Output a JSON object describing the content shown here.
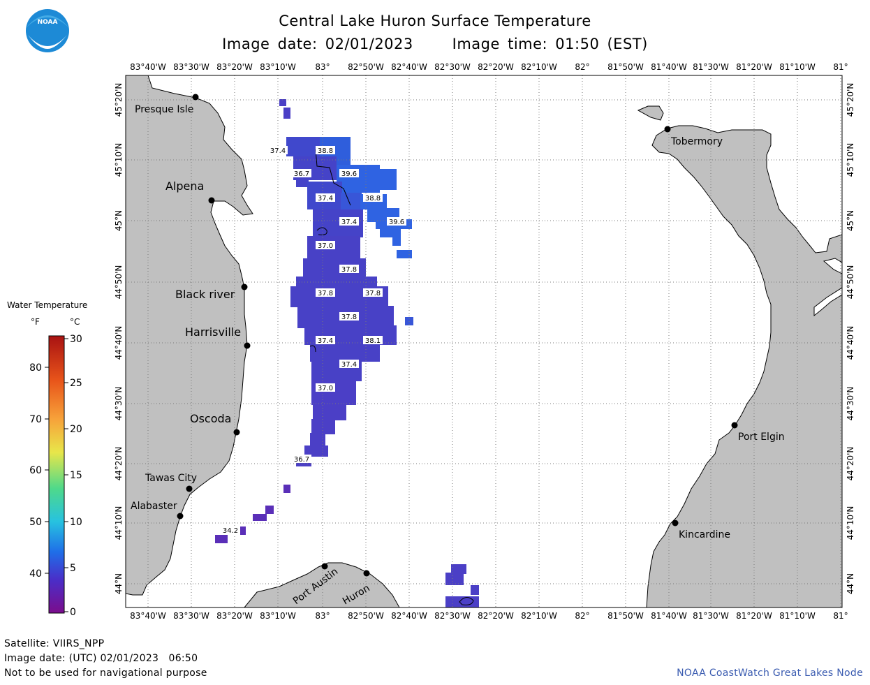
{
  "header": {
    "title": "Central Lake Huron Surface Temperature",
    "date_label": "Image date: 02/01/2023",
    "time_label": "Image time: 01:50 (EST)"
  },
  "logo": {
    "text": "NOAA",
    "icon": "noaa-logo-icon"
  },
  "longitude_ticks": [
    "83°40'W",
    "83°30'W",
    "83°20'W",
    "83°10'W",
    "83°",
    "82°50'W",
    "82°40'W",
    "82°30'W",
    "82°20'W",
    "82°10'W",
    "82°",
    "81°50'W",
    "81°40'W",
    "81°30'W",
    "81°20'W",
    "81°10'W",
    "81°"
  ],
  "latitude_ticks": [
    "45°20'N",
    "45°10'N",
    "45°N",
    "44°50'N",
    "44°40'N",
    "44°30'N",
    "44°20'N",
    "44°10'N",
    "44°N"
  ],
  "places": {
    "presque_isle": "Presque Isle",
    "alpena": "Alpena",
    "black_river": "Black river",
    "harrisville": "Harrisville",
    "oscoda": "Oscoda",
    "tawas_city": "Tawas City",
    "alabaster": "Alabaster",
    "port_austin": "Port Austin",
    "huron": "Huron",
    "tobermory": "Tobermory",
    "port_elgin": "Port Elgin",
    "kincardine": "Kincardine"
  },
  "temperature_labels": [
    "37.4",
    "38.8",
    "36.7",
    "39.6",
    "37.4",
    "38.8",
    "37.4",
    "39.6",
    "37.0",
    "37.8",
    "37.8",
    "37.8",
    "37.8",
    "37.4",
    "38.1",
    "37.4",
    "37.0",
    "36.7",
    "34.2"
  ],
  "legend": {
    "title": "Water Temperature",
    "unit_f": "°F",
    "unit_c": "°C",
    "f_ticks": [
      "80",
      "70",
      "60",
      "50",
      "40"
    ],
    "c_ticks": [
      "30",
      "25",
      "20",
      "15",
      "10",
      "5",
      "0"
    ],
    "colors": [
      "#7b0d8c",
      "#3f3fc8",
      "#1e7be6",
      "#2ec4d6",
      "#55dd77",
      "#e8e64a",
      "#f7a23a",
      "#e8541a",
      "#a81212"
    ]
  },
  "footer": {
    "satellite": "Satellite: VIIRS_NPP",
    "utc_date": "Image date: (UTC) 02/01/2023   06:50",
    "disclaimer": "Not to be used for navigational purpose",
    "credit": "NOAA CoastWatch Great Lakes Node"
  },
  "colors": {
    "land": "#c0c0c0",
    "water_cold": "#4b3fc6",
    "water_mid": "#2e63e0",
    "water_cold_purple": "#5a2fb8",
    "grid": "#808080"
  }
}
